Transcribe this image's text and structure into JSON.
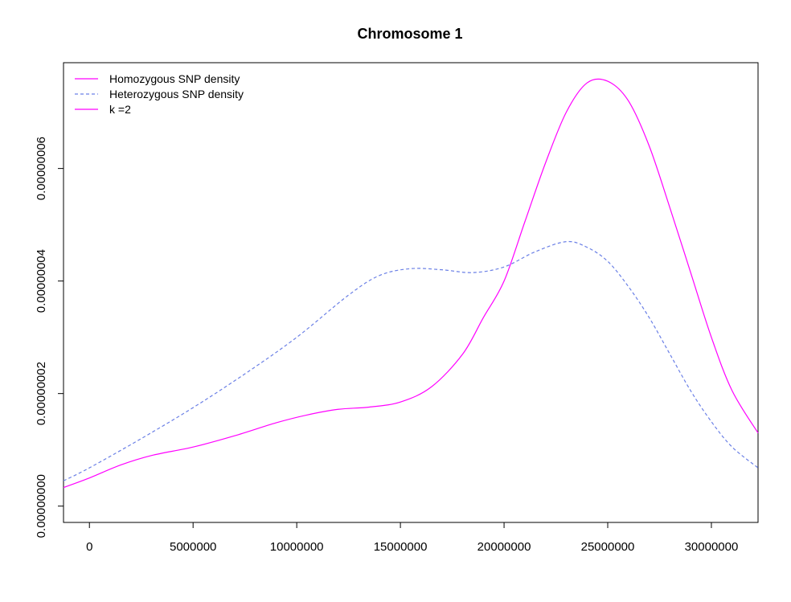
{
  "chart_data": {
    "type": "line",
    "title": "Chromosome 1",
    "xlabel": "",
    "ylabel": "",
    "xlim": [
      -1250000,
      32250000
    ],
    "ylim": [
      -2.9e-09,
      7.88e-08
    ],
    "x_ticks": [
      0,
      5000000,
      10000000,
      15000000,
      20000000,
      25000000,
      30000000
    ],
    "x_tick_labels": [
      "0",
      "5000000",
      "10000000",
      "15000000",
      "20000000",
      "25000000",
      "30000000"
    ],
    "y_ticks": [
      0,
      2e-08,
      4e-08,
      6e-08
    ],
    "y_tick_labels": [
      "0.00000000",
      "0.00000002",
      "0.00000004",
      "0.00000006"
    ],
    "grid": false,
    "legend_position": "top-left",
    "legend": [
      {
        "label": "Homozygous SNP density",
        "color": "#ff00ff",
        "style": "solid"
      },
      {
        "label": "Heterozygous SNP density",
        "color": "#6b80e6",
        "style": "dashed"
      },
      {
        "label": "k =2",
        "color": "#ff00ff",
        "style": "solid"
      }
    ],
    "series": [
      {
        "name": "Homozygous SNP density",
        "color": "#ff00ff",
        "style": "solid",
        "x": [
          -1250000,
          0,
          1500000,
          3000000,
          5000000,
          7000000,
          9000000,
          10500000,
          12000000,
          13500000,
          15000000,
          16500000,
          18000000,
          19000000,
          20000000,
          21000000,
          22000000,
          23000000,
          24000000,
          25000000,
          26000000,
          27000000,
          28000000,
          29000000,
          30000000,
          31000000,
          32250000
        ],
        "y": [
          3.3e-09,
          5e-09,
          7.3e-09,
          9e-09,
          1.05e-08,
          1.25e-08,
          1.48e-08,
          1.62e-08,
          1.72e-08,
          1.76e-08,
          1.85e-08,
          2.12e-08,
          2.7e-08,
          3.35e-08,
          4e-08,
          5.05e-08,
          6.1e-08,
          7e-08,
          7.52e-08,
          7.55e-08,
          7.2e-08,
          6.4e-08,
          5.3e-08,
          4.15e-08,
          3e-08,
          2.05e-08,
          1.3e-08
        ]
      },
      {
        "name": "Heterozygous SNP density",
        "color": "#6b80e6",
        "style": "dashed",
        "x": [
          -1250000,
          0,
          2500000,
          5000000,
          7500000,
          10000000,
          12500000,
          14000000,
          15500000,
          17000000,
          18500000,
          20000000,
          21500000,
          23000000,
          24000000,
          25000000,
          26000000,
          27000000,
          28000000,
          29000000,
          30000000,
          31000000,
          32250000
        ],
        "y": [
          4.5e-09,
          6.8e-09,
          1.2e-08,
          1.75e-08,
          2.35e-08,
          3e-08,
          3.75e-08,
          4.1e-08,
          4.22e-08,
          4.2e-08,
          4.15e-08,
          4.25e-08,
          4.52e-08,
          4.7e-08,
          4.6e-08,
          4.35e-08,
          3.9e-08,
          3.35e-08,
          2.7e-08,
          2.05e-08,
          1.5e-08,
          1.05e-08,
          6.8e-09
        ]
      }
    ]
  }
}
